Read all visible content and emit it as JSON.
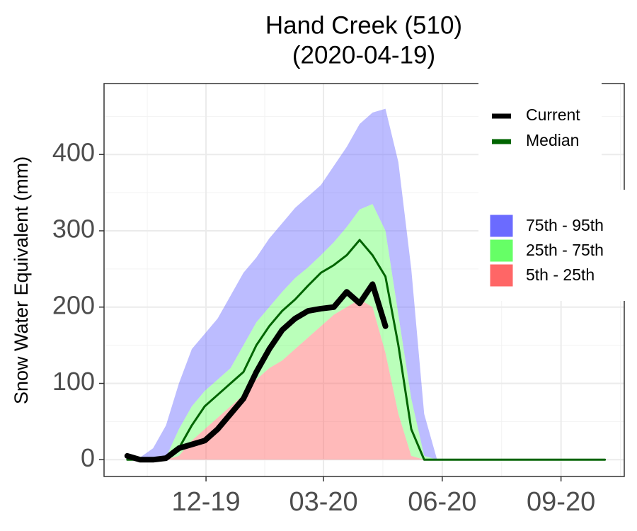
{
  "chart_data": {
    "type": "line",
    "title": "Hand Creek (510)",
    "subtitle": "(2020-04-19)",
    "ylabel": "Snow Water Equivalent (mm)",
    "x": [
      0,
      10,
      20,
      30,
      40,
      50,
      60,
      70,
      80,
      90,
      100,
      110,
      120,
      130,
      140,
      150,
      160,
      170,
      180,
      190,
      200,
      210,
      220,
      230,
      240,
      250,
      260,
      270,
      280,
      290,
      300,
      310,
      320,
      330,
      340,
      350,
      360,
      370
    ],
    "xlim": [
      -18,
      385
    ],
    "xticks": [
      {
        "value": 61,
        "label": "12-19"
      },
      {
        "value": 152,
        "label": "03-20"
      },
      {
        "value": 244,
        "label": "06-20"
      },
      {
        "value": 336,
        "label": "09-20"
      }
    ],
    "ylim": [
      -22,
      493
    ],
    "yticks": [
      0,
      100,
      200,
      300,
      400
    ],
    "grid": true,
    "legend": "right",
    "bands": [
      {
        "name": "75th - 95th",
        "color": "#6b6bff",
        "lower": [
          0,
          0,
          0,
          3,
          40,
          70,
          90,
          105,
          120,
          150,
          180,
          200,
          220,
          238,
          252,
          268,
          285,
          305,
          328,
          335,
          300,
          190,
          80,
          5,
          0,
          0,
          0,
          0,
          0,
          0,
          0,
          0,
          0,
          0,
          0,
          0,
          0,
          0
        ],
        "upper": [
          0,
          3,
          15,
          45,
          100,
          145,
          165,
          185,
          215,
          245,
          265,
          290,
          310,
          330,
          345,
          360,
          385,
          410,
          440,
          455,
          460,
          390,
          250,
          60,
          0,
          0,
          0,
          0,
          0,
          0,
          0,
          0,
          0,
          0,
          0,
          0,
          0,
          0
        ]
      },
      {
        "name": "25th - 75th",
        "color": "#66ff66",
        "lower": [
          0,
          0,
          0,
          0,
          5,
          25,
          40,
          55,
          70,
          85,
          105,
          120,
          130,
          145,
          160,
          175,
          190,
          200,
          210,
          200,
          140,
          60,
          5,
          0,
          0,
          0,
          0,
          0,
          0,
          0,
          0,
          0,
          0,
          0,
          0,
          0,
          0,
          0
        ],
        "upper": [
          0,
          0,
          0,
          3,
          40,
          70,
          90,
          105,
          120,
          150,
          180,
          200,
          220,
          238,
          252,
          268,
          285,
          305,
          328,
          335,
          300,
          190,
          80,
          5,
          0,
          0,
          0,
          0,
          0,
          0,
          0,
          0,
          0,
          0,
          0,
          0,
          0,
          0
        ]
      },
      {
        "name": "5th - 25th",
        "color": "#ff6666",
        "lower": [
          0,
          0,
          0,
          0,
          0,
          0,
          0,
          0,
          0,
          0,
          0,
          0,
          0,
          0,
          0,
          0,
          0,
          0,
          0,
          0,
          0,
          0,
          0,
          0,
          0,
          0,
          0,
          0,
          0,
          0,
          0,
          0,
          0,
          0,
          0,
          0,
          0,
          0
        ],
        "upper": [
          0,
          0,
          0,
          0,
          5,
          25,
          40,
          55,
          70,
          85,
          105,
          120,
          130,
          145,
          160,
          175,
          190,
          200,
          210,
          200,
          140,
          60,
          5,
          0,
          0,
          0,
          0,
          0,
          0,
          0,
          0,
          0,
          0,
          0,
          0,
          0,
          0,
          0
        ]
      }
    ],
    "series": [
      {
        "name": "Current",
        "color": "#000000",
        "values": [
          5,
          0,
          0,
          2,
          15,
          20,
          25,
          40,
          60,
          80,
          115,
          145,
          170,
          185,
          195,
          198,
          200,
          220,
          205,
          230,
          175,
          null,
          null,
          null,
          null,
          null,
          null,
          null,
          null,
          null,
          null,
          null,
          null,
          null,
          null,
          null,
          null,
          null
        ]
      },
      {
        "name": "Median",
        "color": "#006400",
        "values": [
          0,
          0,
          0,
          0,
          15,
          45,
          70,
          85,
          100,
          115,
          150,
          175,
          195,
          210,
          228,
          245,
          255,
          268,
          288,
          268,
          240,
          150,
          40,
          0,
          0,
          0,
          0,
          0,
          0,
          0,
          0,
          0,
          0,
          0,
          0,
          0,
          0,
          0
        ]
      }
    ]
  }
}
